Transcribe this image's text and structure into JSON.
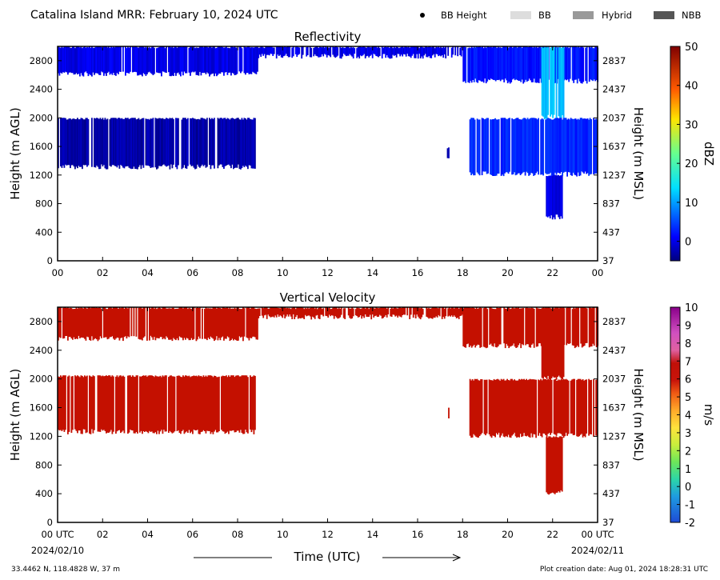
{
  "header": {
    "title": "Catalina Island MRR:  February 10, 2024 UTC",
    "legend": [
      {
        "label": "BB Height",
        "swatch": "dot",
        "color": "#000000"
      },
      {
        "label": "BB",
        "swatch": "box",
        "color": "#dddddd"
      },
      {
        "label": "Hybrid",
        "swatch": "box",
        "color": "#999999"
      },
      {
        "label": "NBB",
        "swatch": "box",
        "color": "#555555"
      }
    ]
  },
  "footer": {
    "location": "33.4462 N, 118.4828 W, 37 m",
    "creation": "Plot creation date: Aug 01, 2024 18:28:31 UTC",
    "xlabel": "Time (UTC)"
  },
  "chart_data": [
    {
      "type": "heatmap",
      "title": "Reflectivity",
      "ylabel_left": "Height (m AGL)",
      "ylabel_right": "Height (m MSL)",
      "yticks_left": [
        0,
        400,
        800,
        1200,
        1600,
        2000,
        2400,
        2800
      ],
      "yticks_right": [
        37,
        437,
        837,
        1237,
        1637,
        2037,
        2437,
        2837
      ],
      "xticks": [
        "00",
        "02",
        "04",
        "06",
        "08",
        "10",
        "12",
        "14",
        "16",
        "18",
        "20",
        "22",
        "00"
      ],
      "xlim": [
        0,
        24
      ],
      "ylim": [
        0,
        3000
      ],
      "colorbar": {
        "label": "dBZ",
        "ticks": [
          0,
          10,
          20,
          30,
          40,
          50
        ],
        "range": [
          -5,
          50
        ],
        "colormap": "jet"
      },
      "echo_regions": [
        {
          "t0": 0.0,
          "t1": 8.9,
          "h0": 2600,
          "h1": 3000,
          "value_dbz": 0
        },
        {
          "t0": 8.9,
          "t1": 18.0,
          "h0": 2850,
          "h1": 3000,
          "value_dbz": 0
        },
        {
          "t0": 18.0,
          "t1": 24.0,
          "h0": 2500,
          "h1": 3000,
          "value_dbz": 2
        },
        {
          "t0": 21.5,
          "t1": 22.5,
          "h0": 2000,
          "h1": 3000,
          "value_dbz": 12
        },
        {
          "t0": 0.0,
          "t1": 8.8,
          "h0": 1300,
          "h1": 2000,
          "value_dbz": -3
        },
        {
          "t0": 17.3,
          "t1": 17.4,
          "h0": 1450,
          "h1": 1600,
          "value_dbz": -3
        },
        {
          "t0": 18.3,
          "t1": 24.0,
          "h0": 1200,
          "h1": 2000,
          "value_dbz": 3
        },
        {
          "t0": 21.7,
          "t1": 22.4,
          "h0": 600,
          "h1": 1200,
          "value_dbz": 0
        }
      ]
    },
    {
      "type": "heatmap",
      "title": "Vertical Velocity",
      "ylabel_left": "Height (m AGL)",
      "ylabel_right": "Height (m MSL)",
      "yticks_left": [
        0,
        400,
        800,
        1200,
        1600,
        2000,
        2400,
        2800
      ],
      "yticks_right": [
        37,
        437,
        837,
        1237,
        1637,
        2037,
        2437,
        2837
      ],
      "xticks": [
        "00 UTC",
        "02",
        "04",
        "06",
        "08",
        "10",
        "12",
        "14",
        "16",
        "18",
        "20",
        "22",
        "00 UTC"
      ],
      "xdates": [
        "2024/02/10",
        "2024/02/11"
      ],
      "xlim": [
        0,
        24
      ],
      "ylim": [
        0,
        3000
      ],
      "colorbar": {
        "label": "m/s",
        "ticks": [
          -2,
          -1,
          0,
          1,
          2,
          3,
          4,
          5,
          6,
          7,
          8,
          9,
          10
        ],
        "range": [
          -2,
          10
        ]
      },
      "echo_regions": [
        {
          "t0": 0.0,
          "t1": 8.9,
          "h0": 2550,
          "h1": 3000,
          "value_ms": 6
        },
        {
          "t0": 8.9,
          "t1": 18.0,
          "h0": 2850,
          "h1": 3000,
          "value_ms": 6
        },
        {
          "t0": 18.0,
          "t1": 24.0,
          "h0": 2450,
          "h1": 3000,
          "value_ms": 6
        },
        {
          "t0": 21.5,
          "t1": 22.5,
          "h0": 2000,
          "h1": 3000,
          "value_ms": 6
        },
        {
          "t0": 0.0,
          "t1": 8.8,
          "h0": 1250,
          "h1": 2050,
          "value_ms": 6
        },
        {
          "t0": 17.3,
          "t1": 17.4,
          "h0": 1450,
          "h1": 1600,
          "value_ms": 6
        },
        {
          "t0": 18.3,
          "t1": 24.0,
          "h0": 1200,
          "h1": 2000,
          "value_ms": 6
        },
        {
          "t0": 21.7,
          "t1": 22.4,
          "h0": 400,
          "h1": 1200,
          "value_ms": 6
        }
      ]
    }
  ]
}
